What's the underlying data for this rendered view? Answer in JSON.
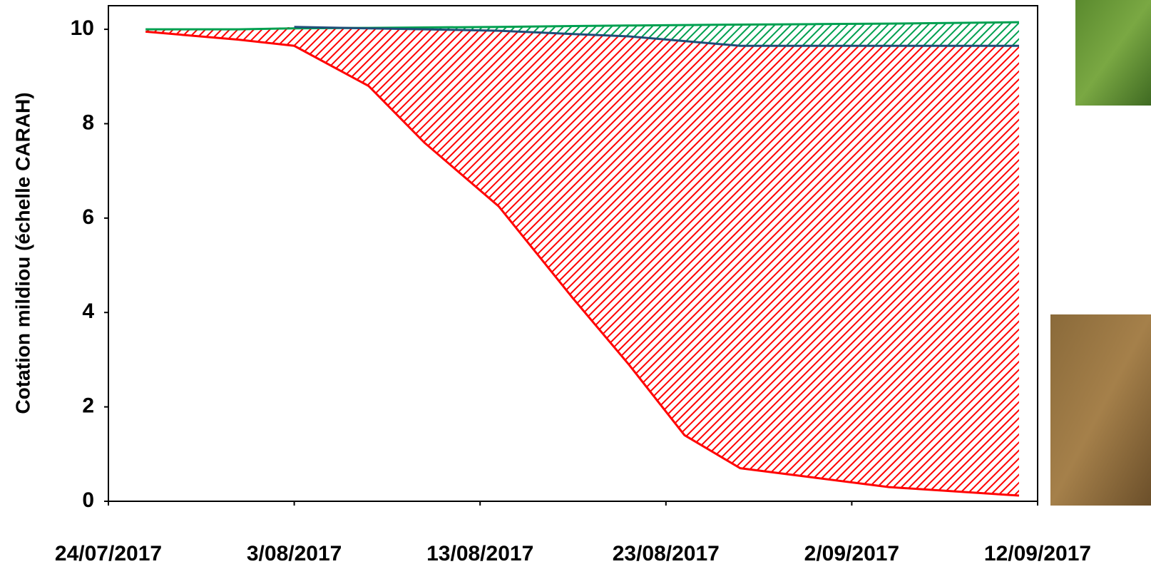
{
  "chart_data": {
    "type": "line",
    "ylabel": "Cotation mildiou (échelle CARAH)",
    "x": [
      "2017-07-26",
      "2017-07-31",
      "2017-08-03",
      "2017-08-07",
      "2017-08-10",
      "2017-08-14",
      "2017-08-18",
      "2017-08-21",
      "2017-08-24",
      "2017-08-27",
      "2017-08-31",
      "2017-09-04",
      "2017-09-11"
    ],
    "series": [
      {
        "color": "#00a050",
        "values": [
          10.0,
          10.0,
          10.02,
          10.03,
          10.04,
          10.05,
          10.07,
          10.08,
          10.09,
          10.1,
          10.11,
          10.12,
          10.15
        ]
      },
      {
        "color": "#1f4e79",
        "values": [
          null,
          null,
          10.05,
          10.02,
          10.0,
          9.97,
          9.9,
          9.85,
          9.75,
          9.65,
          9.65,
          9.65,
          9.65
        ]
      },
      {
        "color": "#ff0000",
        "values": [
          9.95,
          9.78,
          9.65,
          8.8,
          7.6,
          6.25,
          4.3,
          2.9,
          1.4,
          0.7,
          0.5,
          0.3,
          0.12
        ]
      }
    ],
    "xlim": [
      "2017-07-24",
      "2017-09-12"
    ],
    "xticks": [
      {
        "value": "2017-07-24",
        "label": "24/07/2017"
      },
      {
        "value": "2017-08-03",
        "label": "3/08/2017"
      },
      {
        "value": "2017-08-13",
        "label": "13/08/2017"
      },
      {
        "value": "2017-08-23",
        "label": "23/08/2017"
      },
      {
        "value": "2017-09-02",
        "label": "2/09/2017"
      },
      {
        "value": "2017-09-12",
        "label": "12/09/2017"
      }
    ],
    "ylim": [
      0,
      10.5
    ],
    "yticks": [
      0,
      2,
      4,
      6,
      8,
      10
    ],
    "grid": false
  }
}
